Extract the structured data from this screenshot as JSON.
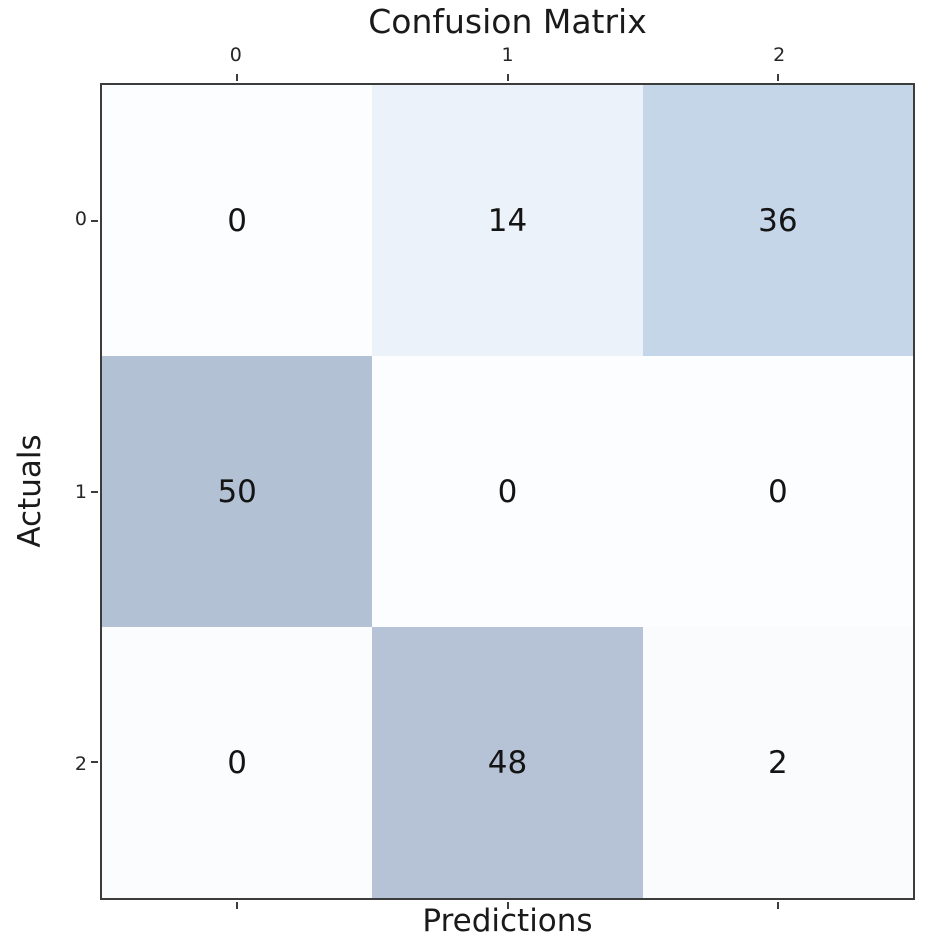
{
  "chart_data": {
    "type": "heatmap",
    "title": "Confusion Matrix",
    "xlabel": "Predictions",
    "ylabel": "Actuals",
    "x_ticks": [
      "0",
      "1",
      "2"
    ],
    "y_ticks": [
      "0",
      "1",
      "2"
    ],
    "matrix": [
      [
        0,
        14,
        36
      ],
      [
        50,
        0,
        0
      ],
      [
        0,
        48,
        2
      ]
    ],
    "cell_colors": [
      [
        "#fcfdff",
        "#ebf2f9",
        "#c5d6e8"
      ],
      [
        "#b3c1d4",
        "#fcfdff",
        "#fcfdff"
      ],
      [
        "#fbfcfe",
        "#b6c3d6",
        "#f9fbfd"
      ]
    ],
    "value_min_color": "#fcfdff",
    "value_max_color": "#b3c1d4",
    "legend": "none",
    "grid": "off"
  },
  "styles": {
    "background": "#ffffff",
    "spine_color": "#3c3c3c",
    "text_color": "#1a1a1a"
  }
}
